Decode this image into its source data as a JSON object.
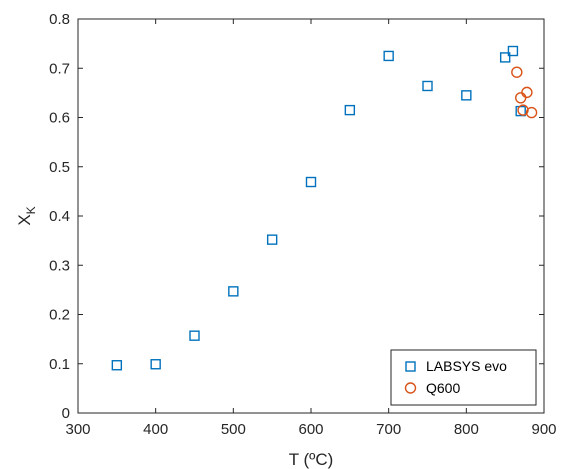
{
  "chart_data": {
    "type": "scatter",
    "title": "",
    "xlabel": "T (ºC)",
    "ylabel_main": "X",
    "ylabel_sub": "K",
    "xlim": [
      300,
      900
    ],
    "ylim": [
      0,
      0.8
    ],
    "xticks": [
      "300",
      "400",
      "500",
      "600",
      "700",
      "800",
      "900"
    ],
    "yticks": [
      "0",
      "0.1",
      "0.2",
      "0.3",
      "0.4",
      "0.5",
      "0.6",
      "0.7",
      "0.8"
    ],
    "grid": false,
    "legend_position": "bottom-right",
    "series": [
      {
        "name": "LABSYS evo",
        "marker": "square",
        "color": "#0072BD",
        "x": [
          350,
          400,
          450,
          500,
          550,
          600,
          650,
          700,
          750,
          800,
          850,
          860,
          870
        ],
        "y": [
          0.097,
          0.099,
          0.157,
          0.247,
          0.352,
          0.469,
          0.615,
          0.725,
          0.664,
          0.645,
          0.722,
          0.735,
          0.613
        ]
      },
      {
        "name": "Q600",
        "marker": "circle",
        "color": "#D95319",
        "x": [
          865,
          870,
          873,
          878,
          884
        ],
        "y": [
          0.692,
          0.64,
          0.615,
          0.651,
          0.61
        ]
      }
    ]
  }
}
